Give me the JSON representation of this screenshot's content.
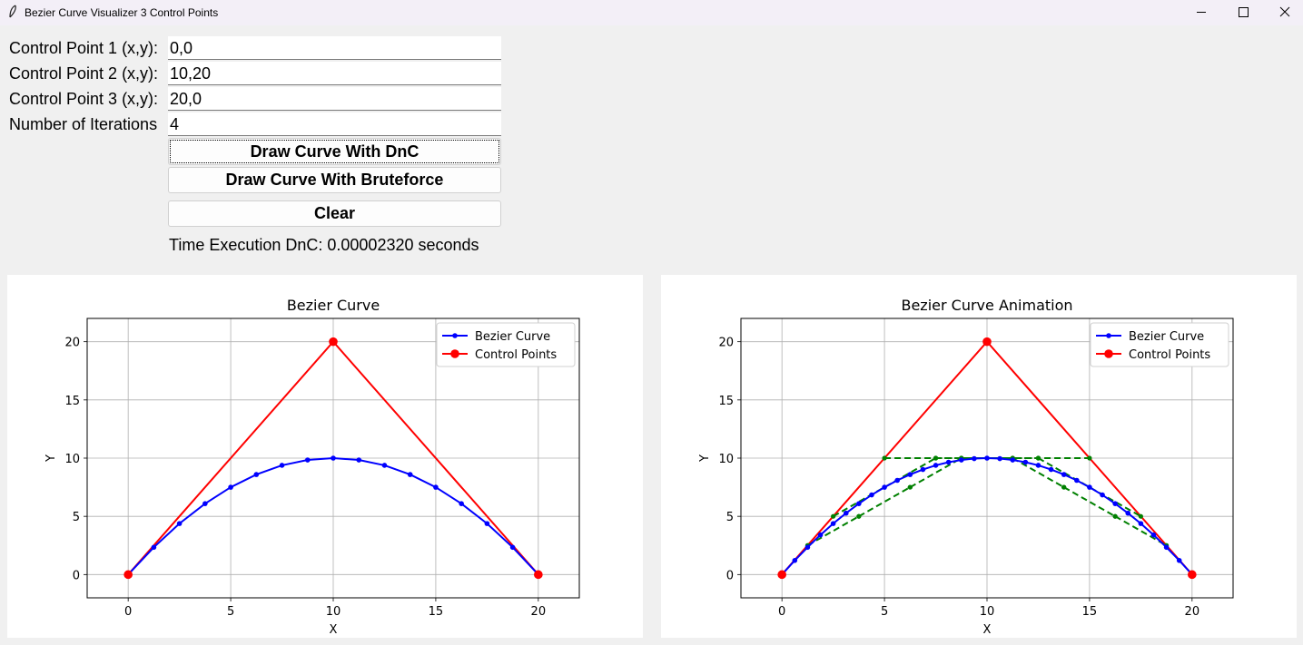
{
  "window": {
    "title": "Bezier Curve Visualizer 3 Control Points"
  },
  "form": {
    "cp1_label": "Control Point 1 (x,y):",
    "cp1_value": "0,0",
    "cp2_label": "Control Point 2 (x,y):",
    "cp2_value": "10,20",
    "cp3_label": "Control Point 3 (x,y):",
    "cp3_value": "20,0",
    "iter_label": "Number of Iterations",
    "iter_value": "4",
    "btn_dnc": "Draw Curve With DnC",
    "btn_brute": "Draw Curve With Bruteforce",
    "btn_clear": "Clear",
    "time_text": "Time Execution DnC: 0.00002320 seconds"
  },
  "chart_data": [
    {
      "type": "line",
      "title": "Bezier Curve",
      "xlabel": "X",
      "ylabel": "Y",
      "xlim": [
        -2,
        22
      ],
      "ylim": [
        -2,
        22
      ],
      "xticks": [
        0,
        5,
        10,
        15,
        20
      ],
      "yticks": [
        0,
        5,
        10,
        15,
        20
      ],
      "grid": true,
      "legend": "top-right",
      "series": [
        {
          "name": "Bezier Curve",
          "color": "#0000ff",
          "marker": "small-dot",
          "x": [
            0,
            1.25,
            2.5,
            3.75,
            5,
            6.25,
            7.5,
            8.75,
            10,
            11.25,
            12.5,
            13.75,
            15,
            16.25,
            17.5,
            18.75,
            20
          ],
          "y": [
            0,
            2.34,
            4.38,
            6.09,
            7.5,
            8.59,
            9.38,
            9.84,
            10,
            9.84,
            9.38,
            8.59,
            7.5,
            6.09,
            4.38,
            2.34,
            0
          ]
        },
        {
          "name": "Control Points",
          "color": "#ff0000",
          "marker": "big-dot",
          "x": [
            0,
            10,
            20
          ],
          "y": [
            0,
            20,
            0
          ]
        }
      ]
    },
    {
      "type": "line",
      "title": "Bezier Curve Animation",
      "xlabel": "X",
      "ylabel": "Y",
      "xlim": [
        -2,
        22
      ],
      "ylim": [
        -2,
        22
      ],
      "xticks": [
        0,
        5,
        10,
        15,
        20
      ],
      "yticks": [
        0,
        5,
        10,
        15,
        20
      ],
      "grid": true,
      "legend": "top-right",
      "series": [
        {
          "name": "Bezier Curve",
          "color": "#0000ff",
          "marker": "small-dot",
          "x": [
            0,
            0.625,
            1.25,
            1.875,
            2.5,
            3.125,
            3.75,
            4.375,
            5,
            5.625,
            6.25,
            6.875,
            7.5,
            8.125,
            8.75,
            9.375,
            10,
            10.625,
            11.25,
            11.875,
            12.5,
            13.125,
            13.75,
            14.375,
            15,
            15.625,
            16.25,
            16.875,
            17.5,
            18.125,
            18.75,
            19.375,
            20
          ],
          "y": [
            0,
            1.21,
            2.34,
            3.4,
            4.38,
            5.27,
            6.09,
            6.84,
            7.5,
            8.09,
            8.59,
            9.02,
            9.38,
            9.65,
            9.84,
            9.96,
            10,
            9.96,
            9.84,
            9.65,
            9.38,
            9.02,
            8.59,
            8.09,
            7.5,
            6.84,
            6.09,
            5.27,
            4.38,
            3.4,
            2.34,
            1.21,
            0
          ]
        },
        {
          "name": "Control Points",
          "color": "#ff0000",
          "marker": "big-dot",
          "x": [
            0,
            10,
            20
          ],
          "y": [
            0,
            20,
            0
          ]
        },
        {
          "color": "#008000",
          "style": "dashed",
          "segments": [
            [
              [
                5,
                10
              ],
              [
                15,
                10
              ]
            ],
            [
              [
                2.5,
                5
              ],
              [
                7.5,
                10
              ]
            ],
            [
              [
                12.5,
                10
              ],
              [
                17.5,
                5
              ]
            ],
            [
              [
                7.5,
                10
              ],
              [
                12.5,
                10
              ]
            ],
            [
              [
                1.25,
                2.5
              ],
              [
                3.75,
                5
              ]
            ],
            [
              [
                3.75,
                5
              ],
              [
                6.25,
                7.5
              ]
            ],
            [
              [
                6.25,
                7.5
              ],
              [
                8.75,
                10
              ]
            ],
            [
              [
                8.75,
                10
              ],
              [
                11.25,
                10
              ]
            ],
            [
              [
                11.25,
                10
              ],
              [
                13.75,
                7.5
              ]
            ],
            [
              [
                13.75,
                7.5
              ],
              [
                16.25,
                5
              ]
            ],
            [
              [
                16.25,
                5
              ],
              [
                18.75,
                2.5
              ]
            ]
          ]
        }
      ]
    }
  ]
}
